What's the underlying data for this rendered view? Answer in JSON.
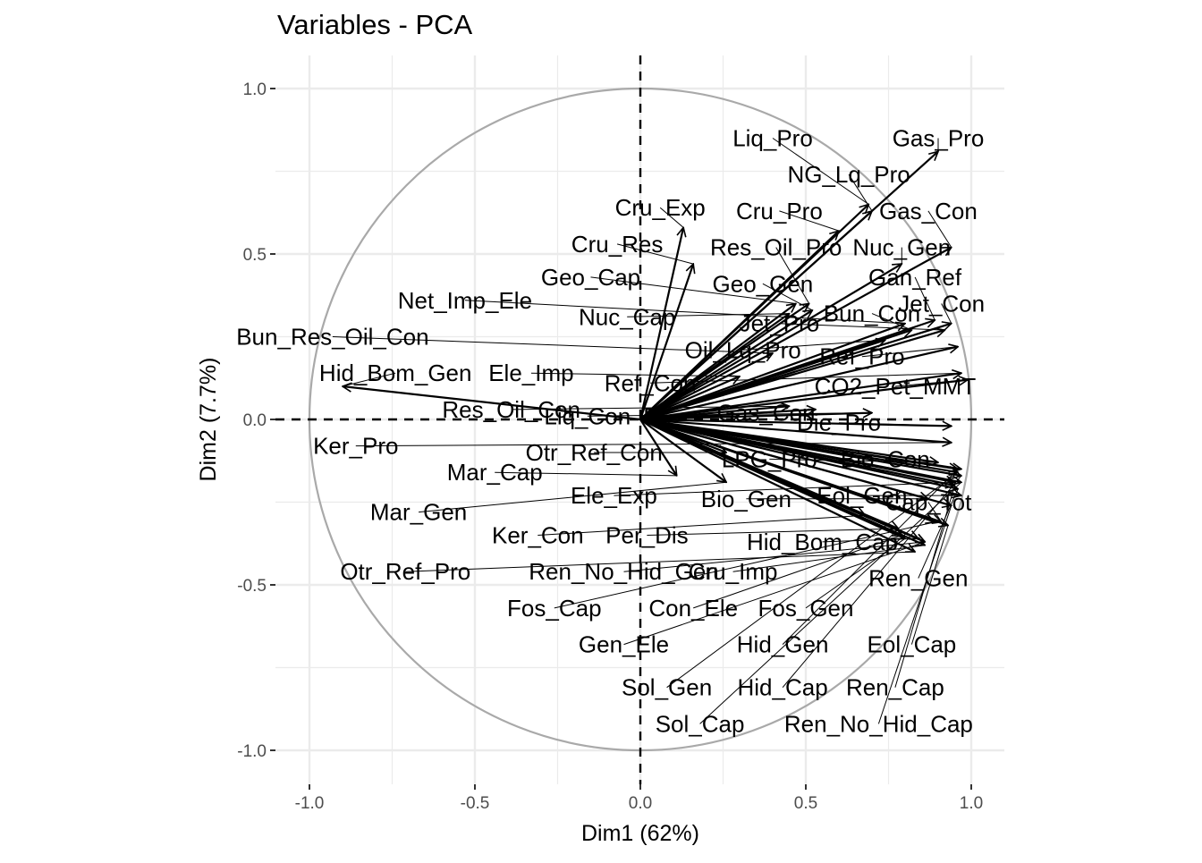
{
  "chart_data": {
    "type": "scatter",
    "title": "Variables - PCA",
    "xlabel": "Dim1 (62%)",
    "ylabel": "Dim2 (7.7%)",
    "xlim": [
      -1.1,
      1.1
    ],
    "ylim": [
      -1.1,
      1.1
    ],
    "x_ticks": [
      -1.0,
      -0.5,
      0.0,
      0.5,
      1.0
    ],
    "y_ticks": [
      -1.0,
      -0.5,
      0.0,
      0.5,
      1.0
    ],
    "x_tick_labels": [
      "-1.0",
      "-0.5",
      "0.0",
      "0.5",
      "1.0"
    ],
    "y_tick_labels": [
      "-1.0",
      "-0.5",
      "0.0",
      "0.5",
      "1.0"
    ],
    "grid": true,
    "unit_circle": true,
    "reference_lines": [
      0,
      0
    ],
    "colors": {
      "arrow": "#000000",
      "circle": "#a9a9a9",
      "grid": "#ebebeb",
      "tick": "#4d4d4d"
    },
    "variables": [
      {
        "name": "Liq_Pro",
        "x": 0.69,
        "y": 0.65,
        "label_x": 0.4,
        "label_y": 0.85
      },
      {
        "name": "Gas_Pro",
        "x": 0.9,
        "y": 0.81,
        "label_x": 0.9,
        "label_y": 0.85
      },
      {
        "name": "NG_Lq_Pro",
        "x": 0.7,
        "y": 0.63,
        "label_x": 0.63,
        "label_y": 0.74
      },
      {
        "name": "Cru_Pro",
        "x": 0.6,
        "y": 0.57,
        "label_x": 0.42,
        "label_y": 0.63
      },
      {
        "name": "Gas_Con",
        "x": 0.94,
        "y": 0.52,
        "label_x": 0.87,
        "label_y": 0.63
      },
      {
        "name": "Cru_Exp",
        "x": 0.13,
        "y": 0.58,
        "label_x": 0.06,
        "label_y": 0.64
      },
      {
        "name": "Res_Oil_Pro",
        "x": 0.51,
        "y": 0.35,
        "label_x": 0.41,
        "label_y": 0.52
      },
      {
        "name": "Nuc_Gen",
        "x": 0.79,
        "y": 0.47,
        "label_x": 0.79,
        "label_y": 0.52
      },
      {
        "name": "Cru_Res",
        "x": 0.16,
        "y": 0.47,
        "label_x": -0.07,
        "label_y": 0.53
      },
      {
        "name": "Gan_Ref",
        "x": 0.89,
        "y": 0.3,
        "label_x": 0.83,
        "label_y": 0.43
      },
      {
        "name": "Geo_Cap",
        "x": 0.47,
        "y": 0.35,
        "label_x": -0.15,
        "label_y": 0.43
      },
      {
        "name": "Geo_Gen",
        "x": 0.52,
        "y": 0.33,
        "label_x": 0.37,
        "label_y": 0.41
      },
      {
        "name": "Jet_Con",
        "x": 0.94,
        "y": 0.29,
        "label_x": 0.91,
        "label_y": 0.35
      },
      {
        "name": "Net_Imp_Ele",
        "x": 0.8,
        "y": 0.29,
        "label_x": -0.53,
        "label_y": 0.36
      },
      {
        "name": "Bun_Con",
        "x": 0.82,
        "y": 0.27,
        "label_x": 0.7,
        "label_y": 0.32
      },
      {
        "name": "Nuc_Cap",
        "x": 0.45,
        "y": 0.32,
        "label_x": -0.04,
        "label_y": 0.31
      },
      {
        "name": "Jet_Pro",
        "x": 0.92,
        "y": 0.27,
        "label_x": 0.42,
        "label_y": 0.29
      },
      {
        "name": "Bun_Res_Oil_Con",
        "x": 0.4,
        "y": 0.2,
        "label_x": -0.93,
        "label_y": 0.25
      },
      {
        "name": "Oil_Lq_Pro",
        "x": 0.74,
        "y": 0.24,
        "label_x": 0.31,
        "label_y": 0.21
      },
      {
        "name": "Ref_Pro",
        "x": 0.96,
        "y": 0.22,
        "label_x": 0.67,
        "label_y": 0.19
      },
      {
        "name": "Hid_Bom_Gen",
        "x": -0.9,
        "y": 0.1,
        "label_x": -0.74,
        "label_y": 0.14
      },
      {
        "name": "Ele_Imp",
        "x": 0.3,
        "y": 0.13,
        "label_x": -0.33,
        "label_y": 0.14
      },
      {
        "name": "Ref_Con",
        "x": 0.97,
        "y": 0.14,
        "label_x": 0.03,
        "label_y": 0.11
      },
      {
        "name": "CO2_Pet_MMT",
        "x": 0.99,
        "y": 0.12,
        "label_x": 0.77,
        "label_y": 0.1
      },
      {
        "name": "Res_Oil_Con",
        "x": 0.45,
        "y": 0.04,
        "label_x": -0.39,
        "label_y": 0.03
      },
      {
        "name": "Liq_Con",
        "x": 0.7,
        "y": 0.02,
        "label_x": -0.16,
        "label_y": 0.01
      },
      {
        "name": "Bi",
        "x": 0.3,
        "y": 0.01,
        "label_x": 0.04,
        "label_y": 0.01
      },
      {
        "name": "Gas_Con",
        "x": 0.53,
        "y": 0.03,
        "label_x": 0.38,
        "label_y": 0.02
      },
      {
        "name": "Die_Pro",
        "x": 0.94,
        "y": -0.02,
        "label_x": 0.6,
        "label_y": -0.01
      },
      {
        "name": "Ker_Pro",
        "x": 0.94,
        "y": -0.07,
        "label_x": -0.86,
        "label_y": -0.08
      },
      {
        "name": "Otr_Ref_Con",
        "x": 0.26,
        "y": -0.1,
        "label_x": -0.14,
        "label_y": -0.1
      },
      {
        "name": "LPG_Pro",
        "x": 0.9,
        "y": -0.13,
        "label_x": 0.39,
        "label_y": -0.12
      },
      {
        "name": "Bio_Con",
        "x": 0.97,
        "y": -0.15,
        "label_x": 0.74,
        "label_y": -0.12
      },
      {
        "name": "Mar_Cap",
        "x": 0.11,
        "y": -0.17,
        "label_x": -0.44,
        "label_y": -0.16
      },
      {
        "name": "Ele_Exp",
        "x": 0.95,
        "y": -0.19,
        "label_x": -0.08,
        "label_y": -0.23
      },
      {
        "name": "Bio_Gen",
        "x": 0.87,
        "y": -0.24,
        "label_x": 0.32,
        "label_y": -0.24
      },
      {
        "name": "Eol_Gen",
        "x": 0.97,
        "y": -0.23,
        "label_x": 0.67,
        "label_y": -0.23
      },
      {
        "name": "Cap_Tot",
        "x": 0.91,
        "y": -0.31,
        "label_x": 0.87,
        "label_y": -0.25
      },
      {
        "name": "Mar_Gen",
        "x": 0.26,
        "y": -0.19,
        "label_x": -0.67,
        "label_y": -0.28
      },
      {
        "name": "Ker_Con",
        "x": 0.68,
        "y": -0.29,
        "label_x": -0.31,
        "label_y": -0.35
      },
      {
        "name": "Per_Dis",
        "x": 0.78,
        "y": -0.33,
        "label_x": 0.02,
        "label_y": -0.35
      },
      {
        "name": "Hid_Bom_Cap",
        "x": 0.84,
        "y": -0.36,
        "label_x": 0.55,
        "label_y": -0.37
      },
      {
        "name": "Otr_Ref_Pro",
        "x": 0.83,
        "y": -0.4,
        "label_x": -0.71,
        "label_y": -0.46
      },
      {
        "name": "Ren_No_Hid_Gen",
        "x": 0.86,
        "y": -0.37,
        "label_x": -0.05,
        "label_y": -0.46
      },
      {
        "name": "Cru_Imp",
        "x": 0.86,
        "y": -0.38,
        "label_x": 0.28,
        "label_y": -0.46
      },
      {
        "name": "Ren_Gen",
        "x": 0.96,
        "y": -0.21,
        "label_x": 0.84,
        "label_y": -0.48
      },
      {
        "name": "Fos_Cap",
        "x": 0.89,
        "y": -0.31,
        "label_x": -0.26,
        "label_y": -0.57
      },
      {
        "name": "Con_Ele",
        "x": 0.79,
        "y": -0.35,
        "label_x": 0.16,
        "label_y": -0.57
      },
      {
        "name": "Fos_Gen",
        "x": 0.8,
        "y": -0.36,
        "label_x": 0.5,
        "label_y": -0.57
      },
      {
        "name": "Gen_Ele",
        "x": 0.86,
        "y": -0.37,
        "label_x": -0.05,
        "label_y": -0.68
      },
      {
        "name": "Hid_Gen",
        "x": 0.96,
        "y": -0.15,
        "label_x": 0.43,
        "label_y": -0.68
      },
      {
        "name": "Eol_Cap",
        "x": 0.93,
        "y": -0.32,
        "label_x": 0.82,
        "label_y": -0.68
      },
      {
        "name": "Sol_Gen",
        "x": 0.96,
        "y": -0.16,
        "label_x": 0.08,
        "label_y": -0.81
      },
      {
        "name": "Hid_Cap",
        "x": 0.97,
        "y": -0.17,
        "label_x": 0.43,
        "label_y": -0.81
      },
      {
        "name": "Ren_Cap",
        "x": 0.95,
        "y": -0.2,
        "label_x": 0.77,
        "label_y": -0.81
      },
      {
        "name": "Sol_Cap",
        "x": 0.97,
        "y": -0.19,
        "label_x": 0.18,
        "label_y": -0.92
      },
      {
        "name": "Ren_No_Hid_Cap",
        "x": 0.94,
        "y": -0.26,
        "label_x": 0.72,
        "label_y": -0.92
      }
    ]
  }
}
